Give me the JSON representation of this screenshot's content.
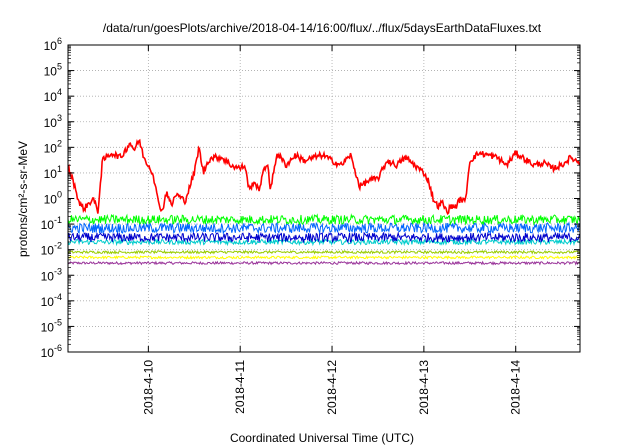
{
  "chart_data": {
    "type": "line",
    "title": "/data/run/goesPlots/archive/2018-04-14/16:00/flux/../flux/5daysEarthDataFluxes.txt",
    "xlabel": "Coordinated Universal Time (UTC)",
    "ylabel": "protons/cm²-s-sr-MeV",
    "y_scale": "log",
    "ylim_exponents": [
      -6,
      6
    ],
    "y_tick_exponents": [
      -6,
      -5,
      -4,
      -3,
      -2,
      -1,
      0,
      1,
      2,
      3,
      4,
      5,
      6
    ],
    "xlim_days": [
      9.125,
      14.7
    ],
    "x_ticks": [
      {
        "label": "2018-4-10",
        "day": 10
      },
      {
        "label": "2018-4-11",
        "day": 11
      },
      {
        "label": "2018-4-12",
        "day": 12
      },
      {
        "label": "2018-4-13",
        "day": 13
      },
      {
        "label": "2018-4-14",
        "day": 14
      }
    ],
    "grid": true,
    "legend": "none",
    "series": [
      {
        "color": "#ff0000",
        "noise_exp": 0.12,
        "x": [
          9.13,
          9.2,
          9.25,
          9.3,
          9.4,
          9.45,
          9.5,
          9.6,
          9.7,
          9.8,
          9.85,
          9.9,
          9.95,
          10.0,
          10.05,
          10.1,
          10.15,
          10.2,
          10.25,
          10.3,
          10.4,
          10.5,
          10.55,
          10.6,
          10.65,
          10.7,
          10.8,
          10.9,
          11.0,
          11.05,
          11.1,
          11.15,
          11.2,
          11.25,
          11.3,
          11.33,
          11.4,
          11.5,
          11.6,
          11.7,
          11.8,
          11.9,
          12.0,
          12.1,
          12.2,
          12.3,
          12.4,
          12.5,
          12.6,
          12.7,
          12.8,
          12.9,
          13.0,
          13.05,
          13.1,
          13.15,
          13.2,
          13.25,
          13.3,
          13.35,
          13.4,
          13.45,
          13.5,
          13.6,
          13.7,
          13.8,
          13.9,
          14.0,
          14.1,
          14.2,
          14.3,
          14.4,
          14.5,
          14.6,
          14.7
        ],
        "y": [
          15,
          3,
          0.6,
          0.4,
          1.0,
          0.3,
          30,
          60,
          40,
          150,
          80,
          200,
          40,
          20,
          10,
          1,
          0.3,
          2,
          0.5,
          1.5,
          0.8,
          10,
          100,
          10,
          30,
          40,
          40,
          20,
          15,
          20,
          2,
          5,
          2,
          10,
          25,
          2,
          60,
          20,
          50,
          30,
          40,
          50,
          30,
          20,
          50,
          3,
          5,
          6,
          30,
          20,
          40,
          20,
          10,
          5,
          1,
          0.5,
          0.7,
          0.3,
          0.5,
          0.5,
          1,
          0.7,
          30,
          60,
          50,
          40,
          20,
          60,
          35,
          20,
          25,
          15,
          20,
          40,
          25
        ]
      },
      {
        "color": "#00ff00",
        "base": 0.15,
        "noise_exp": 0.18,
        "x": [
          9.125,
          14.7
        ],
        "y": [
          0.15,
          0.15
        ]
      },
      {
        "color": "#0066ff",
        "base": 0.07,
        "noise_exp": 0.2,
        "x": [
          9.125,
          14.7
        ],
        "y": [
          0.07,
          0.07
        ]
      },
      {
        "color": "#0000cc",
        "base": 0.03,
        "noise_exp": 0.18,
        "x": [
          9.125,
          14.7
        ],
        "y": [
          0.03,
          0.03
        ]
      },
      {
        "color": "#00cccc",
        "base": 0.02,
        "noise_exp": 0.1,
        "x": [
          9.125,
          14.7
        ],
        "y": [
          0.02,
          0.02
        ]
      },
      {
        "color": "#99cc00",
        "base": 0.008,
        "noise_exp": 0.05,
        "x": [
          9.125,
          14.7
        ],
        "y": [
          0.008,
          0.008
        ]
      },
      {
        "color": "#ffff00",
        "base": 0.005,
        "noise_exp": 0.05,
        "x": [
          9.125,
          14.7
        ],
        "y": [
          0.005,
          0.005
        ]
      },
      {
        "color": "#993399",
        "base": 0.003,
        "noise_exp": 0.05,
        "x": [
          9.125,
          14.7
        ],
        "y": [
          0.003,
          0.003
        ]
      }
    ]
  }
}
